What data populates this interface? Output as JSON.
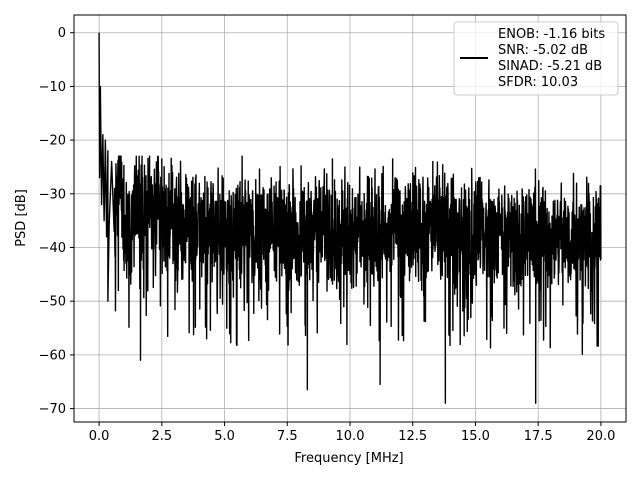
{
  "chart_data": {
    "type": "line",
    "xlabel": "Frequency [MHz]",
    "ylabel": "PSD [dB]",
    "xlim": [
      -1.0,
      21.0
    ],
    "ylim": [
      -72.5,
      3.3
    ],
    "xticks": [
      0.0,
      2.5,
      5.0,
      7.5,
      10.0,
      12.5,
      15.0,
      17.5,
      20.0
    ],
    "xtick_labels": [
      "0.0",
      "2.5",
      "5.0",
      "7.5",
      "10.0",
      "12.5",
      "15.0",
      "17.5",
      "20.0"
    ],
    "yticks": [
      0,
      -10,
      -20,
      -30,
      -40,
      -50,
      -60,
      -70
    ],
    "ytick_labels": [
      "0",
      "−10",
      "−20",
      "−30",
      "−40",
      "−50",
      "−60",
      "−70"
    ],
    "grid": true,
    "legend_position": "top-right",
    "legend_lines": [
      "ENOB: -1.16 bits",
      "SNR: -5.02 dB",
      "SINAD: -5.21 dB",
      "SFDR: 10.03"
    ],
    "series": [
      {
        "color": "#000000",
        "x": [
          0.0,
          0.02,
          0.05,
          0.1,
          0.15,
          0.2,
          0.25,
          0.3,
          0.35,
          0.4,
          0.5,
          0.6,
          0.8,
          1.0,
          1.5,
          2.0,
          3.0,
          4.0,
          5.0,
          6.0,
          7.0,
          8.0,
          9.0,
          10.0,
          11.0,
          12.0,
          13.0,
          14.0,
          15.0,
          16.0,
          17.0,
          18.0,
          19.0,
          20.0
        ],
        "y": [
          0,
          -27,
          -10,
          -32,
          -19,
          -35,
          -20,
          -38,
          -22,
          -36,
          -24,
          -37,
          -26,
          -38,
          -32,
          -34,
          -36,
          -36,
          -37,
          -37,
          -37,
          -37,
          -37,
          -37,
          -37,
          -37,
          -37,
          -37,
          -37,
          -38,
          -38,
          -38,
          -38,
          -38
        ]
      }
    ],
    "annotations": {
      "spikes_max": [
        {
          "x": 2.5,
          "y": -23.5
        },
        {
          "x": 5.7,
          "y": -23.0
        },
        {
          "x": 9.3,
          "y": -23.5
        },
        {
          "x": 11.7,
          "y": -23.5
        },
        {
          "x": 13.3,
          "y": -24.0
        }
      ],
      "dips_min": [
        {
          "x": 0.35,
          "y": -50
        },
        {
          "x": 1.65,
          "y": -61
        },
        {
          "x": 8.3,
          "y": -66.5
        },
        {
          "x": 11.2,
          "y": -65.5
        },
        {
          "x": 13.8,
          "y": -69
        },
        {
          "x": 17.4,
          "y": -69
        }
      ]
    }
  }
}
